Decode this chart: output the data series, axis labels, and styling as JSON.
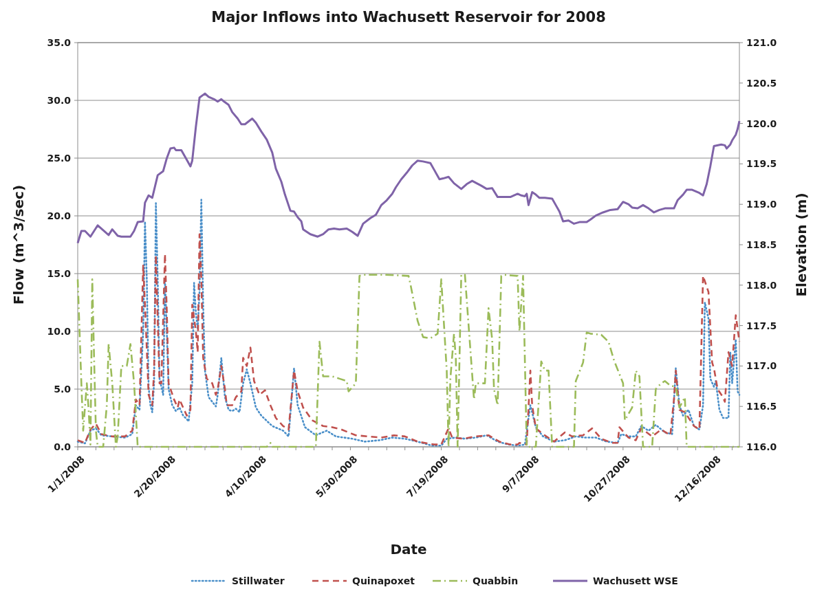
{
  "chart_data": {
    "type": "line",
    "title": "Major Inflows into Wachusett Reservoir for 2008",
    "xlabel": "Date",
    "ylabel": "Flow (m^3/sec)",
    "y2label": "Elevation (m)",
    "xlim": [
      "2008-01-01",
      "2008-12-30"
    ],
    "xticks": [
      {
        "value": "2008-01-01",
        "label": "1/1/2008"
      },
      {
        "value": "2008-01-11",
        "label": null
      },
      {
        "value": "2008-01-21",
        "label": null
      },
      {
        "value": "2008-01-31",
        "label": null
      },
      {
        "value": "2008-02-10",
        "label": null
      },
      {
        "value": "2008-02-20",
        "label": "2/20/2008"
      },
      {
        "value": "2008-03-01",
        "label": null
      },
      {
        "value": "2008-03-11",
        "label": null
      },
      {
        "value": "2008-03-21",
        "label": null
      },
      {
        "value": "2008-03-31",
        "label": null
      },
      {
        "value": "2008-04-10",
        "label": "4/10/2008"
      },
      {
        "value": "2008-04-20",
        "label": null
      },
      {
        "value": "2008-04-30",
        "label": null
      },
      {
        "value": "2008-05-10",
        "label": null
      },
      {
        "value": "2008-05-20",
        "label": null
      },
      {
        "value": "2008-05-30",
        "label": "5/30/2008"
      },
      {
        "value": "2008-06-09",
        "label": null
      },
      {
        "value": "2008-06-19",
        "label": null
      },
      {
        "value": "2008-06-29",
        "label": null
      },
      {
        "value": "2008-07-09",
        "label": null
      },
      {
        "value": "2008-07-19",
        "label": "7/19/2008"
      },
      {
        "value": "2008-07-29",
        "label": null
      },
      {
        "value": "2008-08-08",
        "label": null
      },
      {
        "value": "2008-08-18",
        "label": null
      },
      {
        "value": "2008-08-28",
        "label": null
      },
      {
        "value": "2008-09-07",
        "label": "9/7/2008"
      },
      {
        "value": "2008-09-17",
        "label": null
      },
      {
        "value": "2008-09-27",
        "label": null
      },
      {
        "value": "2008-10-07",
        "label": null
      },
      {
        "value": "2008-10-17",
        "label": null
      },
      {
        "value": "2008-10-27",
        "label": "10/27/2008"
      },
      {
        "value": "2008-11-06",
        "label": null
      },
      {
        "value": "2008-11-16",
        "label": null
      },
      {
        "value": "2008-11-26",
        "label": null
      },
      {
        "value": "2008-12-06",
        "label": null
      },
      {
        "value": "2008-12-16",
        "label": "12/16/2008"
      },
      {
        "value": "2008-12-26",
        "label": null
      }
    ],
    "ylim": [
      0,
      35
    ],
    "yticks": [
      {
        "value": 0,
        "label": "0.0"
      },
      {
        "value": 5,
        "label": "5.0"
      },
      {
        "value": 10,
        "label": "10.0"
      },
      {
        "value": 15,
        "label": "15.0"
      },
      {
        "value": 20,
        "label": "20.0"
      },
      {
        "value": 25,
        "label": "25.0"
      },
      {
        "value": 30,
        "label": "30.0"
      },
      {
        "value": 35,
        "label": "35.0"
      }
    ],
    "y2lim": [
      116,
      121
    ],
    "y2ticks": [
      {
        "value": 116,
        "label": "116.0"
      },
      {
        "value": 116.5,
        "label": "116.5"
      },
      {
        "value": 117,
        "label": "117.0"
      },
      {
        "value": 117.5,
        "label": "117.5"
      },
      {
        "value": 118,
        "label": "118.0"
      },
      {
        "value": 118.5,
        "label": "118.5"
      },
      {
        "value": 119,
        "label": "119.0"
      },
      {
        "value": 119.5,
        "label": "119.5"
      },
      {
        "value": 120,
        "label": "120.0"
      },
      {
        "value": 120.5,
        "label": "120.5"
      },
      {
        "value": 121,
        "label": "121.0"
      }
    ],
    "grid": "y",
    "legend": "bottom",
    "marker": "none",
    "series": [
      {
        "name": "Stillwater",
        "color": "#4a8fc9",
        "line_style": "dotted",
        "x": [
          "2008-01-01",
          "2008-01-05",
          "2008-01-08",
          "2008-01-11",
          "2008-01-14",
          "2008-01-20",
          "2008-01-27",
          "2008-01-31",
          "2008-02-02",
          "2008-02-04",
          "2008-02-06",
          "2008-02-07",
          "2008-02-08",
          "2008-02-09",
          "2008-02-10",
          "2008-02-11",
          "2008-02-12",
          "2008-02-13",
          "2008-02-14",
          "2008-02-15",
          "2008-02-17",
          "2008-02-18",
          "2008-02-19",
          "2008-02-20",
          "2008-02-22",
          "2008-02-24",
          "2008-02-26",
          "2008-02-28",
          "2008-03-01",
          "2008-03-02",
          "2008-03-04",
          "2008-03-05",
          "2008-03-06",
          "2008-03-07",
          "2008-03-08",
          "2008-03-09",
          "2008-03-10",
          "2008-03-11",
          "2008-03-13",
          "2008-03-17",
          "2008-03-18",
          "2008-03-20",
          "2008-03-22",
          "2008-03-24",
          "2008-03-26",
          "2008-03-28",
          "2008-03-30",
          "2008-04-01",
          "2008-04-03",
          "2008-04-05",
          "2008-04-08",
          "2008-04-11",
          "2008-04-17",
          "2008-04-23",
          "2008-04-26",
          "2008-04-29",
          "2008-05-01",
          "2008-05-05",
          "2008-05-11",
          "2008-05-17",
          "2008-05-22",
          "2008-05-31",
          "2008-06-07",
          "2008-06-15",
          "2008-06-22",
          "2008-06-29",
          "2008-07-06",
          "2008-07-14",
          "2008-07-19",
          "2008-07-22",
          "2008-07-27",
          "2008-08-01",
          "2008-08-07",
          "2008-08-13",
          "2008-08-19",
          "2008-08-25",
          "2008-08-30",
          "2008-09-03",
          "2008-09-05",
          "2008-09-06",
          "2008-09-09",
          "2008-09-13",
          "2008-09-19",
          "2008-09-25",
          "2008-10-01",
          "2008-10-06",
          "2008-10-12",
          "2008-10-18",
          "2008-10-24",
          "2008-10-26",
          "2008-10-30",
          "2008-11-03",
          "2008-11-06",
          "2008-11-10",
          "2008-11-14",
          "2008-11-19",
          "2008-11-23",
          "2008-11-25",
          "2008-11-27",
          "2008-11-29",
          "2008-12-02",
          "2008-12-05",
          "2008-12-08",
          "2008-12-10",
          "2008-12-11",
          "2008-12-13",
          "2008-12-14",
          "2008-12-16",
          "2008-12-17",
          "2008-12-19",
          "2008-12-21",
          "2008-12-24",
          "2008-12-25",
          "2008-12-26",
          "2008-12-28",
          "2008-12-29",
          "2008-12-30"
        ],
        "values": [
          0.45,
          0.3,
          1.4,
          1.6,
          1.0,
          0.9,
          0.8,
          1.1,
          3.6,
          3.2,
          10,
          19.5,
          14.5,
          5.2,
          3.6,
          3.0,
          5.5,
          21.1,
          14.5,
          5.9,
          4.5,
          14.5,
          10,
          5.0,
          3.6,
          3.1,
          3.4,
          2.7,
          2.4,
          2.2,
          5.5,
          14.2,
          11.6,
          10.2,
          13.4,
          21.4,
          12.3,
          6.6,
          4.3,
          3.5,
          4.5,
          7.7,
          4.3,
          3.2,
          3.1,
          3.3,
          3.0,
          5.5,
          6.7,
          5.5,
          3.4,
          2.7,
          1.8,
          1.4,
          0.9,
          6.8,
          3.6,
          1.7,
          1.0,
          1.4,
          0.9,
          0.7,
          0.45,
          0.57,
          0.8,
          0.7,
          0.45,
          0.1,
          0.1,
          0.7,
          0.8,
          0.7,
          0.8,
          1.0,
          0.45,
          0.2,
          0.1,
          0.2,
          2.5,
          3.6,
          1.7,
          0.9,
          0.45,
          0.57,
          0.9,
          0.8,
          0.8,
          0.45,
          0.34,
          1.1,
          0.9,
          0.9,
          1.8,
          1.4,
          1.9,
          1.25,
          1.1,
          6.8,
          3.6,
          2.7,
          3.2,
          1.8,
          1.5,
          3.6,
          12.5,
          11.1,
          5.9,
          5.2,
          5.7,
          3.2,
          2.5,
          2.5,
          8.2,
          5.5,
          9.3,
          4.8,
          4.5
        ]
      },
      {
        "name": "Quinapoxet",
        "color": "#c0504d",
        "line_style": "dashed",
        "x": [
          "2008-01-01",
          "2008-01-05",
          "2008-01-08",
          "2008-01-11",
          "2008-01-14",
          "2008-01-20",
          "2008-01-27",
          "2008-01-31",
          "2008-02-02",
          "2008-02-04",
          "2008-02-06",
          "2008-02-07",
          "2008-02-09",
          "2008-02-11",
          "2008-02-12",
          "2008-02-13",
          "2008-02-15",
          "2008-02-16",
          "2008-02-18",
          "2008-02-19",
          "2008-02-20",
          "2008-02-23",
          "2008-02-25",
          "2008-02-26",
          "2008-02-28",
          "2008-03-01",
          "2008-03-03",
          "2008-03-04",
          "2008-03-06",
          "2008-03-07",
          "2008-03-08",
          "2008-03-09",
          "2008-03-10",
          "2008-03-12",
          "2008-03-15",
          "2008-03-17",
          "2008-03-18",
          "2008-03-20",
          "2008-03-22",
          "2008-03-23",
          "2008-03-26",
          "2008-03-28",
          "2008-03-31",
          "2008-04-01",
          "2008-04-03",
          "2008-04-05",
          "2008-04-07",
          "2008-04-10",
          "2008-04-13",
          "2008-04-16",
          "2008-04-19",
          "2008-04-23",
          "2008-04-26",
          "2008-04-29",
          "2008-05-01",
          "2008-05-04",
          "2008-05-09",
          "2008-05-15",
          "2008-05-20",
          "2008-05-25",
          "2008-06-02",
          "2008-06-09",
          "2008-06-16",
          "2008-06-23",
          "2008-06-29",
          "2008-07-06",
          "2008-07-15",
          "2008-07-19",
          "2008-07-23",
          "2008-07-25",
          "2008-07-31",
          "2008-08-07",
          "2008-08-14",
          "2008-08-20",
          "2008-08-26",
          "2008-08-30",
          "2008-08-31",
          "2008-09-04",
          "2008-09-06",
          "2008-09-07",
          "2008-09-09",
          "2008-09-13",
          "2008-09-19",
          "2008-09-25",
          "2008-09-29",
          "2008-10-05",
          "2008-10-10",
          "2008-10-15",
          "2008-10-21",
          "2008-10-24",
          "2008-10-25",
          "2008-10-30",
          "2008-11-03",
          "2008-11-06",
          "2008-11-12",
          "2008-11-17",
          "2008-11-22",
          "2008-11-24",
          "2008-11-25",
          "2008-11-27",
          "2008-11-30",
          "2008-12-05",
          "2008-12-08",
          "2008-12-10",
          "2008-12-13",
          "2008-12-15",
          "2008-12-16",
          "2008-12-18",
          "2008-12-21",
          "2008-12-22",
          "2008-12-24",
          "2008-12-26",
          "2008-12-28",
          "2008-12-30"
        ],
        "values": [
          0.57,
          0.34,
          1.5,
          2.0,
          1.1,
          0.9,
          0.9,
          1.4,
          4.1,
          3.6,
          15.7,
          12.3,
          4.5,
          3.6,
          6.6,
          16.6,
          5.5,
          5.5,
          16.7,
          11.8,
          5.5,
          4.1,
          3.4,
          4.1,
          3.4,
          2.7,
          3.2,
          12.3,
          10,
          8.2,
          18.4,
          14.5,
          7.7,
          5.9,
          5.5,
          4.5,
          5.0,
          7.0,
          5.0,
          3.6,
          3.6,
          4.3,
          4.8,
          7.7,
          7.0,
          8.6,
          5.7,
          4.5,
          4.9,
          3.6,
          2.5,
          1.8,
          1.5,
          6.6,
          4.8,
          3.4,
          2.3,
          1.8,
          1.7,
          1.5,
          1.0,
          0.9,
          0.8,
          1.0,
          0.9,
          0.45,
          0.2,
          0.2,
          1.6,
          0.8,
          0.7,
          0.9,
          1.0,
          0.45,
          0.2,
          0.2,
          0.34,
          0.2,
          6.6,
          3.6,
          1.6,
          1.1,
          0.45,
          1.25,
          0.9,
          1.0,
          1.6,
          0.7,
          0.34,
          0.34,
          1.7,
          0.8,
          0.57,
          1.6,
          0.9,
          1.5,
          1.0,
          4.1,
          6.6,
          3.2,
          3.0,
          1.8,
          1.5,
          14.8,
          13.4,
          7.3,
          6.8,
          5.0,
          4.3,
          3.9,
          8.2,
          7.0,
          11.4,
          9.1
        ]
      },
      {
        "name": "Quabbin",
        "color": "#9bbb59",
        "line_style": "dashdot",
        "x": [
          "2008-01-01",
          "2008-01-02",
          "2008-01-03",
          "2008-01-04",
          "2008-01-06",
          "2008-01-07",
          "2008-01-08",
          "2008-01-09",
          "2008-01-10",
          "2008-01-11",
          "2008-01-12",
          "2008-01-15",
          "2008-01-17",
          "2008-01-18",
          "2008-01-20",
          "2008-01-22",
          "2008-01-23",
          "2008-01-25",
          "2008-01-28",
          "2008-01-30",
          "2008-02-01",
          "2008-02-03",
          "2008-04-14",
          "2008-04-16",
          "2008-04-17",
          "2008-05-11",
          "2008-05-13",
          "2008-05-15",
          "2008-05-20",
          "2008-05-24",
          "2008-05-28",
          "2008-05-29",
          "2008-06-02",
          "2008-06-04",
          "2008-06-06",
          "2008-06-18",
          "2008-07-01",
          "2008-07-02",
          "2008-07-06",
          "2008-07-09",
          "2008-07-13",
          "2008-07-17",
          "2008-07-19",
          "2008-07-22",
          "2008-07-23",
          "2008-07-24",
          "2008-07-26",
          "2008-07-27",
          "2008-07-28",
          "2008-07-30",
          "2008-08-01",
          "2008-08-06",
          "2008-08-07",
          "2008-08-12",
          "2008-08-14",
          "2008-08-16",
          "2008-08-17",
          "2008-08-19",
          "2008-08-21",
          "2008-08-22",
          "2008-08-30",
          "2008-08-31",
          "2008-09-02",
          "2008-09-04",
          "2008-09-09",
          "2008-09-12",
          "2008-09-14",
          "2008-09-16",
          "2008-09-18",
          "2008-09-30",
          "2008-10-01",
          "2008-10-05",
          "2008-10-07",
          "2008-10-09",
          "2008-10-15",
          "2008-10-19",
          "2008-10-22",
          "2008-10-27",
          "2008-10-28",
          "2008-11-01",
          "2008-11-03",
          "2008-11-05",
          "2008-11-07",
          "2008-11-12",
          "2008-11-14",
          "2008-11-17",
          "2008-11-19",
          "2008-11-22",
          "2008-11-25",
          "2008-11-27",
          "2008-11-30",
          "2008-12-01",
          "2008-12-30"
        ],
        "values": [
          14.5,
          10,
          5.5,
          1.4,
          5.5,
          3.2,
          0.2,
          14.5,
          7.7,
          1.4,
          0,
          0,
          3.6,
          8.9,
          5.5,
          0,
          0.9,
          7.0,
          7.0,
          8.9,
          5.5,
          0,
          0,
          0.34,
          0,
          0,
          9.1,
          6.1,
          6.1,
          5.9,
          5.7,
          4.8,
          5.5,
          14.8,
          14.9,
          14.9,
          14.8,
          14.1,
          10.9,
          9.5,
          9.4,
          9.8,
          14.5,
          6.6,
          0,
          5.9,
          9.8,
          7.7,
          0,
          14.9,
          14.9,
          4.1,
          5.5,
          5.5,
          12,
          9.3,
          5.0,
          3.6,
          14.8,
          14.9,
          14.8,
          10,
          14.8,
          0,
          0,
          7.4,
          6.6,
          6.6,
          0,
          0,
          5.7,
          7.3,
          9.9,
          9.8,
          9.7,
          9.1,
          7.5,
          5.5,
          2.3,
          3.4,
          6.6,
          6.1,
          0,
          0,
          5.0,
          5.5,
          5.7,
          5.3,
          5.2,
          3.4,
          4.3,
          0,
          0
        ]
      },
      {
        "name": "Wachusett WSE",
        "color": "#7f63a8",
        "line_style": "solid",
        "axis": "y2",
        "x": [
          "2008-01-01",
          "2008-01-03",
          "2008-01-05",
          "2008-01-08",
          "2008-01-12",
          "2008-01-15",
          "2008-01-18",
          "2008-01-20",
          "2008-01-23",
          "2008-01-25",
          "2008-01-30",
          "2008-02-01",
          "2008-02-03",
          "2008-02-06",
          "2008-02-07",
          "2008-02-09",
          "2008-02-11",
          "2008-02-14",
          "2008-02-17",
          "2008-02-19",
          "2008-02-21",
          "2008-02-23",
          "2008-02-24",
          "2008-02-27",
          "2008-03-01",
          "2008-03-03",
          "2008-03-04",
          "2008-03-06",
          "2008-03-08",
          "2008-03-11",
          "2008-03-13",
          "2008-03-16",
          "2008-03-18",
          "2008-03-20",
          "2008-03-21",
          "2008-03-24",
          "2008-03-26",
          "2008-03-29",
          "2008-03-31",
          "2008-04-02",
          "2008-04-06",
          "2008-04-08",
          "2008-04-11",
          "2008-04-14",
          "2008-04-17",
          "2008-04-19",
          "2008-04-22",
          "2008-04-24",
          "2008-04-27",
          "2008-04-29",
          "2008-05-01",
          "2008-05-03",
          "2008-05-04",
          "2008-05-08",
          "2008-05-12",
          "2008-05-15",
          "2008-05-18",
          "2008-05-21",
          "2008-05-24",
          "2008-05-28",
          "2008-05-31",
          "2008-06-03",
          "2008-06-06",
          "2008-06-10",
          "2008-06-13",
          "2008-06-16",
          "2008-06-19",
          "2008-06-22",
          "2008-06-24",
          "2008-06-27",
          "2008-06-30",
          "2008-07-03",
          "2008-07-06",
          "2008-07-09",
          "2008-07-13",
          "2008-07-15",
          "2008-07-18",
          "2008-07-20",
          "2008-07-23",
          "2008-07-26",
          "2008-07-30",
          "2008-08-02",
          "2008-08-05",
          "2008-08-10",
          "2008-08-13",
          "2008-08-16",
          "2008-08-19",
          "2008-08-23",
          "2008-08-26",
          "2008-08-30",
          "2008-09-01",
          "2008-09-03",
          "2008-09-04",
          "2008-09-05",
          "2008-09-07",
          "2008-09-09",
          "2008-09-11",
          "2008-09-14",
          "2008-09-18",
          "2008-09-20",
          "2008-09-22",
          "2008-09-24",
          "2008-09-27",
          "2008-09-30",
          "2008-10-03",
          "2008-10-07",
          "2008-10-09",
          "2008-10-12",
          "2008-10-16",
          "2008-10-20",
          "2008-10-24",
          "2008-10-27",
          "2008-10-30",
          "2008-11-01",
          "2008-11-04",
          "2008-11-07",
          "2008-11-10",
          "2008-11-13",
          "2008-11-16",
          "2008-11-19",
          "2008-11-24",
          "2008-11-26",
          "2008-11-29",
          "2008-12-01",
          "2008-12-04",
          "2008-12-08",
          "2008-12-10",
          "2008-12-12",
          "2008-12-14",
          "2008-12-16",
          "2008-12-20",
          "2008-12-22",
          "2008-12-23",
          "2008-12-25",
          "2008-12-26",
          "2008-12-28",
          "2008-12-29",
          "2008-12-30"
        ],
        "values": [
          118.52,
          118.67,
          118.67,
          118.6,
          118.74,
          118.68,
          118.62,
          118.69,
          118.61,
          118.6,
          118.6,
          118.67,
          118.78,
          118.79,
          119.02,
          119.11,
          119.08,
          119.36,
          119.41,
          119.57,
          119.69,
          119.7,
          119.67,
          119.67,
          119.55,
          119.47,
          119.54,
          119.96,
          120.32,
          120.37,
          120.33,
          120.3,
          120.27,
          120.3,
          120.28,
          120.23,
          120.14,
          120.06,
          119.99,
          119.99,
          120.06,
          120.01,
          119.9,
          119.8,
          119.64,
          119.44,
          119.28,
          119.12,
          118.92,
          118.91,
          118.84,
          118.79,
          118.69,
          118.63,
          118.6,
          118.63,
          118.69,
          118.7,
          118.69,
          118.7,
          118.66,
          118.61,
          118.76,
          118.83,
          118.87,
          118.99,
          119.05,
          119.13,
          119.21,
          119.31,
          119.39,
          119.48,
          119.54,
          119.53,
          119.51,
          119.43,
          119.31,
          119.32,
          119.34,
          119.26,
          119.19,
          119.25,
          119.29,
          119.23,
          119.19,
          119.2,
          119.09,
          119.09,
          119.09,
          119.13,
          119.11,
          119.1,
          119.13,
          118.99,
          119.15,
          119.12,
          119.08,
          119.08,
          119.07,
          118.99,
          118.91,
          118.79,
          118.8,
          118.76,
          118.78,
          118.78,
          118.81,
          118.86,
          118.9,
          118.93,
          118.94,
          119.03,
          119.0,
          118.96,
          118.95,
          118.99,
          118.95,
          118.9,
          118.93,
          118.95,
          118.95,
          119.05,
          119.12,
          119.18,
          119.18,
          119.14,
          119.11,
          119.25,
          119.47,
          119.72,
          119.74,
          119.73,
          119.69,
          119.74,
          119.79,
          119.86,
          119.93,
          120.03
        ]
      }
    ]
  }
}
